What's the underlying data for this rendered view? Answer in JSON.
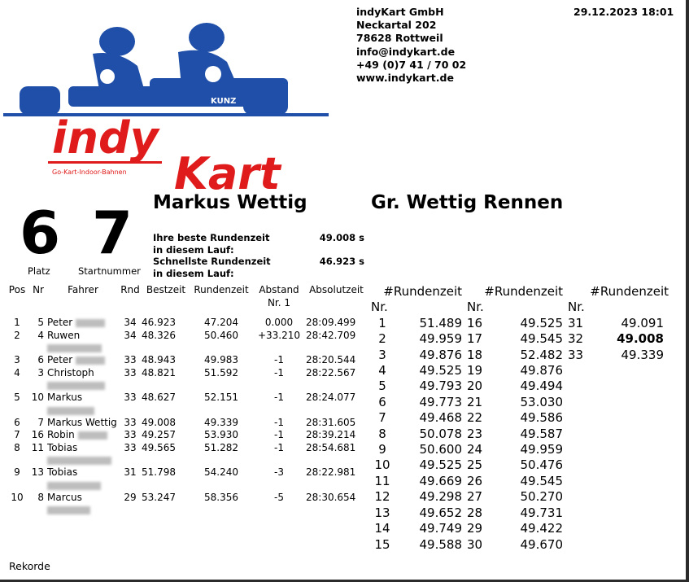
{
  "company": {
    "lines": [
      "indyKart GmbH",
      "Neckartal 202",
      "78628 Rottweil",
      "info@indykart.de",
      "+49 (0)7 41 / 70 02",
      "www.indykart.de"
    ],
    "logo_text": "indyKart",
    "logo_sub": "Go-Kart-Indoor-Bahnen",
    "kart_label": "KUNZ"
  },
  "datetime": "29.12.2023 18:01",
  "placement": {
    "platz": "6",
    "platz_label": "Platz",
    "startnummer": "7",
    "startnummer_label": "Startnummer"
  },
  "driver_name": "Markus Wettig",
  "race_name": "Gr. Wettig Rennen",
  "stats": [
    {
      "label": "Ihre beste Rundenzeit in diesem Lauf:",
      "value": "49.008 s"
    },
    {
      "label": "Schnellste Rundenzeit in diesem Lauf:",
      "value": "46.923 s"
    }
  ],
  "results": {
    "headers": [
      "Pos",
      "Nr",
      "Fahrer",
      "Rnd",
      "Bestzeit",
      "Rundenzeit",
      "Abstand Nr. 1",
      "Absolutzeit"
    ],
    "rows": [
      {
        "pos": "1",
        "nr": "5",
        "name": "Peter",
        "rnd": "34",
        "best": "46.923",
        "lap": "47.204",
        "gap": "0.000",
        "abs": "28:09.499",
        "two_line": false
      },
      {
        "pos": "2",
        "nr": "4",
        "name": "Ruwen",
        "rnd": "34",
        "best": "48.326",
        "lap": "50.460",
        "gap": "+33.210",
        "abs": "28:42.709",
        "two_line": true
      },
      {
        "pos": "3",
        "nr": "6",
        "name": "Peter",
        "rnd": "33",
        "best": "48.943",
        "lap": "49.983",
        "gap": "-1",
        "abs": "28:20.544",
        "two_line": false
      },
      {
        "pos": "4",
        "nr": "3",
        "name": "Christoph",
        "rnd": "33",
        "best": "48.821",
        "lap": "51.592",
        "gap": "-1",
        "abs": "28:22.567",
        "two_line": true
      },
      {
        "pos": "5",
        "nr": "10",
        "name": "Markus",
        "rnd": "33",
        "best": "48.627",
        "lap": "52.151",
        "gap": "-1",
        "abs": "28:24.077",
        "two_line": true
      },
      {
        "pos": "6",
        "nr": "7",
        "name": "Markus Wettig",
        "rnd": "33",
        "best": "49.008",
        "lap": "49.339",
        "gap": "-1",
        "abs": "28:31.605",
        "two_line": true,
        "visible_surname": true
      },
      {
        "pos": "7",
        "nr": "16",
        "name": "Robin",
        "rnd": "33",
        "best": "49.257",
        "lap": "53.930",
        "gap": "-1",
        "abs": "28:39.214",
        "two_line": false
      },
      {
        "pos": "8",
        "nr": "11",
        "name": "Tobias",
        "rnd": "33",
        "best": "49.565",
        "lap": "51.282",
        "gap": "-1",
        "abs": "28:54.681",
        "two_line": true
      },
      {
        "pos": "9",
        "nr": "13",
        "name": "Tobias",
        "rnd": "31",
        "best": "51.798",
        "lap": "54.240",
        "gap": "-3",
        "abs": "28:22.981",
        "two_line": true
      },
      {
        "pos": "10",
        "nr": "8",
        "name": "Marcus",
        "rnd": "29",
        "best": "53.247",
        "lap": "58.356",
        "gap": "-5",
        "abs": "28:30.654",
        "two_line": true
      }
    ]
  },
  "laps": {
    "col_header": "#Rundenzeit",
    "nr_header": "Nr.",
    "best_lap": "32",
    "times": [
      "51.489",
      "49.959",
      "49.876",
      "49.525",
      "49.793",
      "49.773",
      "49.468",
      "50.078",
      "50.600",
      "49.525",
      "49.669",
      "49.298",
      "49.652",
      "49.749",
      "49.588",
      "49.525",
      "49.545",
      "52.482",
      "49.876",
      "49.494",
      "53.030",
      "49.586",
      "49.587",
      "49.959",
      "50.476",
      "49.545",
      "50.270",
      "49.731",
      "49.422",
      "49.670",
      "49.091",
      "49.008",
      "49.339"
    ]
  },
  "footer": "Rekorde",
  "colors": {
    "logo_blue": "#1f4fa8",
    "logo_red": "#e01b1b"
  }
}
